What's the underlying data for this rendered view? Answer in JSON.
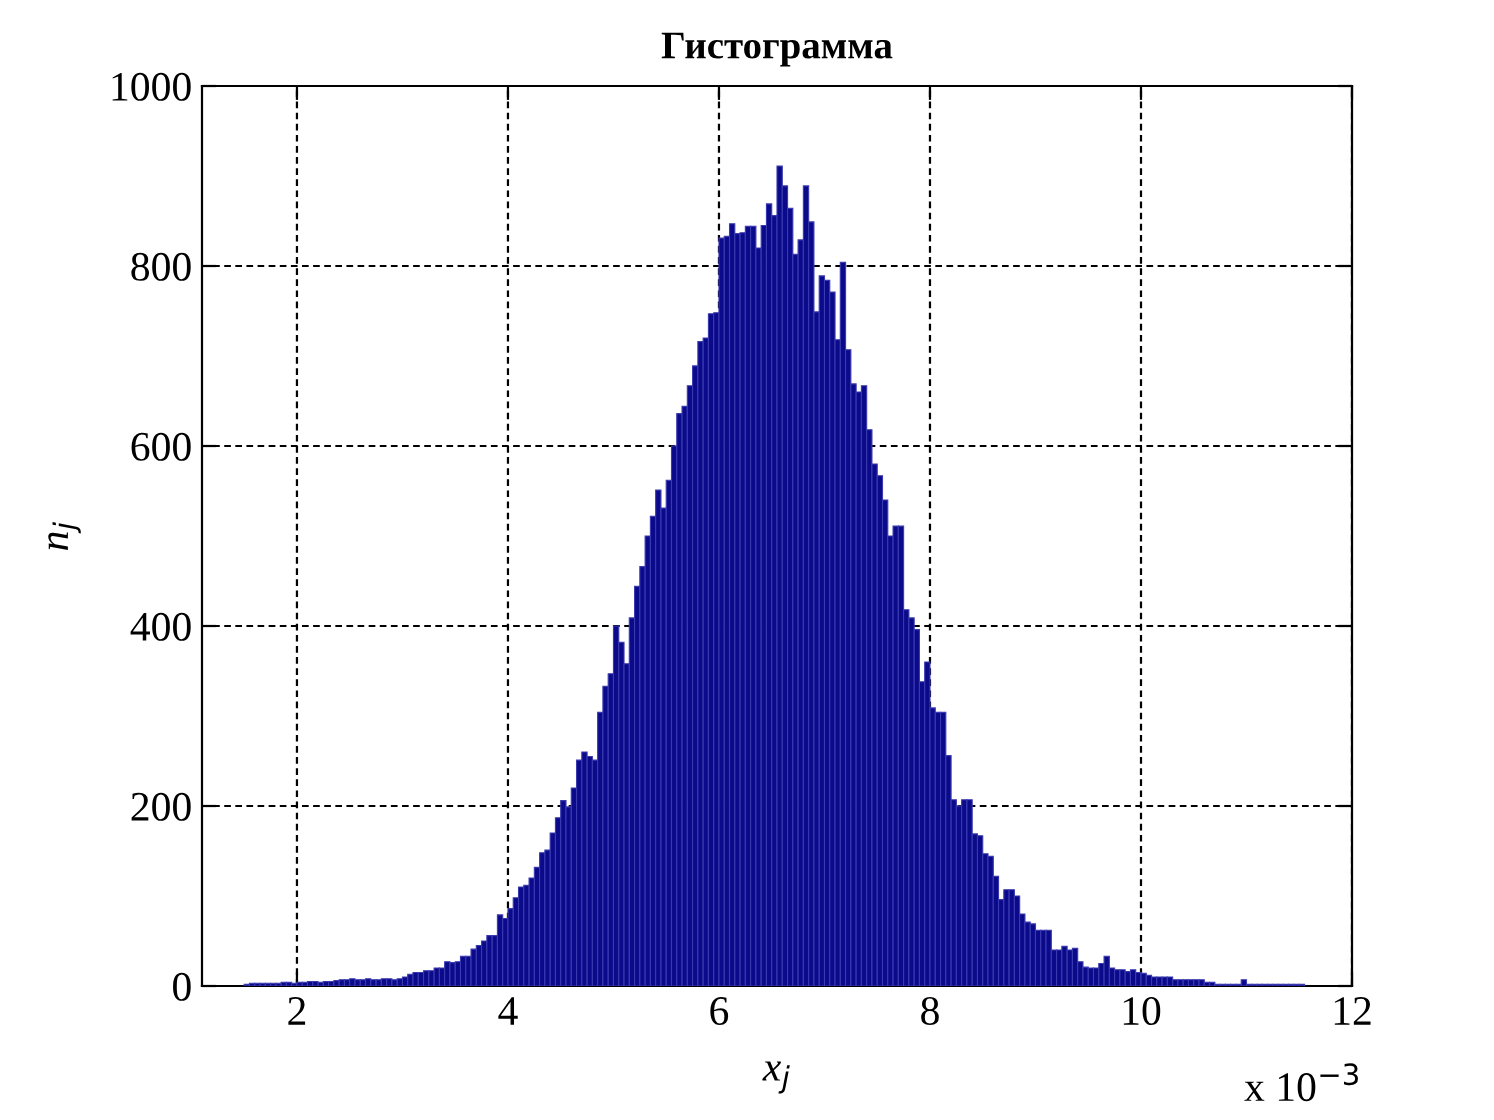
{
  "chart_data": {
    "type": "histogram",
    "title": "Гистограмма",
    "xlabel": "x$_{j}$",
    "ylabel": "n$_{j}$",
    "annotations": [
      "x 10$^{−3}$"
    ],
    "color": "#0a0a8a",
    "bins": [
      1.5,
      1.55,
      1.6,
      1.65,
      1.7,
      1.75,
      1.8,
      1.85,
      1.9,
      1.95,
      2.0,
      2.05,
      2.1,
      2.15,
      2.2,
      2.25,
      2.3,
      2.35,
      2.4,
      2.45,
      2.5,
      2.55,
      2.6,
      2.65,
      2.7,
      2.75,
      2.8,
      2.85,
      2.9,
      2.95,
      3.0,
      3.05,
      3.1,
      3.15,
      3.2,
      3.25,
      3.3,
      3.35,
      3.4,
      3.45,
      3.5,
      3.55,
      3.6,
      3.65,
      3.7,
      3.75,
      3.8,
      3.85,
      3.9,
      3.95,
      4.0,
      4.05,
      4.1,
      4.15,
      4.2,
      4.25,
      4.3,
      4.35,
      4.4,
      4.45,
      4.5,
      4.55,
      4.6,
      4.65,
      4.7,
      4.75,
      4.8,
      4.85,
      4.9,
      4.95,
      5.0,
      5.05,
      5.1,
      5.15,
      5.2,
      5.25,
      5.3,
      5.35,
      5.4,
      5.45,
      5.5,
      5.55,
      5.6,
      5.65,
      5.7,
      5.75,
      5.8,
      5.85,
      5.9,
      5.95,
      6.0,
      6.05,
      6.1,
      6.15,
      6.2,
      6.25,
      6.3,
      6.35,
      6.4,
      6.45,
      6.5,
      6.55,
      6.6,
      6.65,
      6.7,
      6.75,
      6.8,
      6.85,
      6.9,
      6.95,
      7.0,
      7.05,
      7.1,
      7.15,
      7.2,
      7.25,
      7.3,
      7.35,
      7.4,
      7.45,
      7.5,
      7.55,
      7.6,
      7.65,
      7.7,
      7.75,
      7.8,
      7.85,
      7.9,
      7.95,
      8.0,
      8.05,
      8.1,
      8.15,
      8.2,
      8.25,
      8.3,
      8.35,
      8.4,
      8.45,
      8.5,
      8.55,
      8.6,
      8.65,
      8.7,
      8.75,
      8.8,
      8.85,
      8.9,
      8.95,
      9.0,
      9.05,
      9.1,
      9.15,
      9.2,
      9.25,
      9.3,
      9.35,
      9.4,
      9.45,
      9.5,
      9.55,
      9.6,
      9.65,
      9.7,
      9.75,
      9.8,
      9.85,
      9.9,
      9.95,
      10.0,
      10.05,
      10.1,
      10.15,
      10.2,
      10.25,
      10.3,
      10.35,
      10.4,
      10.45,
      10.5,
      10.55,
      10.6,
      10.65,
      10.7,
      10.75,
      10.8,
      10.85,
      10.9,
      10.95,
      11.0,
      11.05,
      11.1,
      11.15,
      11.2,
      11.25,
      11.3,
      11.35,
      11.4,
      11.45,
      11.5,
      11.55
    ],
    "values": [
      2,
      3,
      3,
      3,
      3,
      3,
      3,
      4,
      4,
      3,
      4,
      4,
      5,
      5,
      4,
      5,
      5,
      6,
      7,
      7,
      8,
      7,
      7,
      8,
      7,
      7,
      8,
      8,
      7,
      8,
      10,
      13,
      15,
      15,
      17,
      17,
      20,
      20,
      27,
      26,
      27,
      33,
      33,
      41,
      45,
      50,
      56,
      56,
      79,
      75,
      86,
      98,
      110,
      112,
      120,
      132,
      148,
      151,
      170,
      187,
      206,
      199,
      220,
      251,
      260,
      255,
      251,
      304,
      333,
      347,
      400,
      382,
      358,
      409,
      444,
      466,
      500,
      522,
      551,
      531,
      562,
      600,
      636,
      644,
      667,
      689,
      716,
      720,
      747,
      748,
      831,
      833,
      847,
      836,
      837,
      844,
      844,
      820,
      845,
      869,
      856,
      911,
      889,
      864,
      813,
      829,
      889,
      849,
      749,
      789,
      784,
      771,
      718,
      804,
      707,
      669,
      660,
      667,
      618,
      580,
      567,
      540,
      500,
      511,
      511,
      418,
      409,
      396,
      338,
      360,
      309,
      304,
      304,
      256,
      207,
      200,
      207,
      207,
      169,
      167,
      147,
      144,
      122,
      96,
      107,
      107,
      100,
      80,
      71,
      69,
      62,
      62,
      62,
      40,
      40,
      44,
      40,
      42,
      27,
      21,
      20,
      20,
      25,
      33,
      20,
      18,
      18,
      16,
      18,
      15,
      14,
      12,
      10,
      10,
      10,
      10,
      7,
      7,
      7,
      7,
      7,
      7,
      4,
      4,
      2,
      2,
      2,
      2,
      2,
      7,
      2,
      2,
      2,
      2,
      2,
      2,
      2,
      2,
      2,
      2,
      2
    ],
    "xlim": [
      1.1,
      12
    ],
    "xticks": [
      2,
      4,
      6,
      8,
      10,
      12
    ],
    "ylim": [
      0,
      1000
    ],
    "yticks": [
      0,
      200,
      400,
      600,
      800,
      1000
    ],
    "grid": true
  }
}
